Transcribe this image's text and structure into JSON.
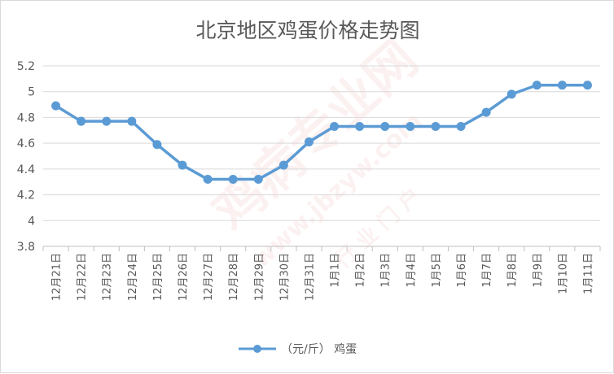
{
  "chart_data": {
    "type": "line",
    "title": "北京地区鸡蛋价格走势图",
    "categories": [
      "12月21日",
      "12月22日",
      "12月23日",
      "12月24日",
      "12月25日",
      "12月26日",
      "12月27日",
      "12月28日",
      "12月29日",
      "12月30日",
      "12月31日",
      "1月1日",
      "1月2日",
      "1月3日",
      "1月4日",
      "1月5日",
      "1月6日",
      "1月7日",
      "1月8日",
      "1月9日",
      "1月10日",
      "1月11日"
    ],
    "series": [
      {
        "name": "（元/斤） 鸡蛋",
        "values": [
          4.89,
          4.77,
          4.77,
          4.77,
          4.59,
          4.43,
          4.32,
          4.32,
          4.32,
          4.43,
          4.61,
          4.73,
          4.73,
          4.73,
          4.73,
          4.73,
          4.73,
          4.84,
          4.98,
          5.05,
          5.05,
          5.05
        ],
        "color": "#5b9bd5"
      }
    ],
    "ylim": [
      3.8,
      5.2
    ],
    "yticks": [
      3.8,
      4,
      4.2,
      4.4,
      4.6,
      4.8,
      5,
      5.2
    ],
    "grid": true,
    "legend_position": "bottom"
  },
  "watermark": {
    "text": "鸡病专业网",
    "url": "www.jbzyw.com",
    "sub": "行 业 门 户"
  }
}
